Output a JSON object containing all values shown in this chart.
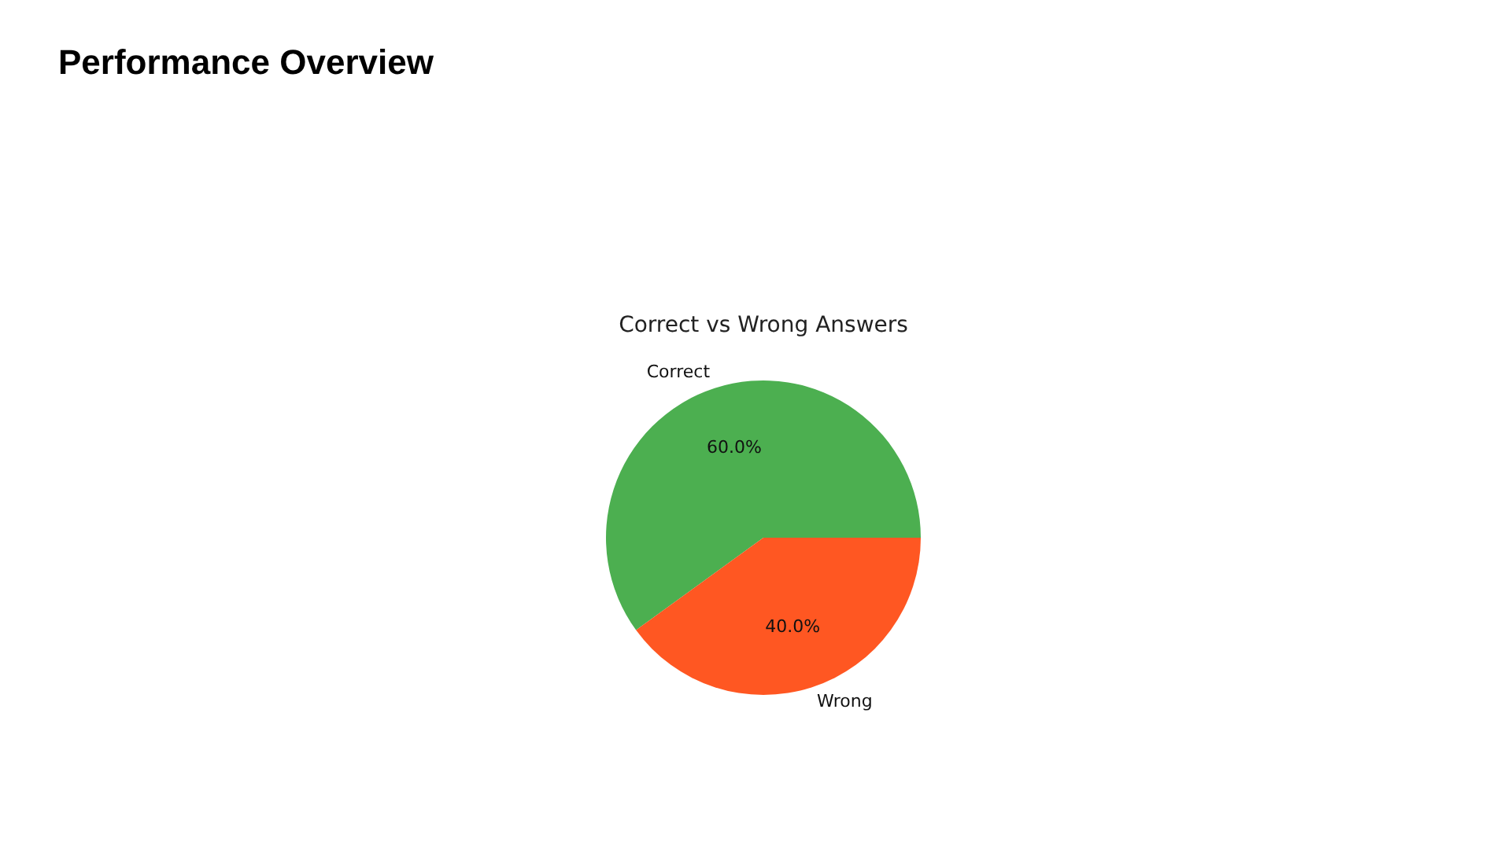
{
  "chart_data": {
    "type": "pie",
    "title": "Performance Overview",
    "subtitle": "Correct vs Wrong Answers",
    "categories": [
      "Correct",
      "Wrong"
    ],
    "values": [
      60,
      40
    ],
    "colors": [
      "#4caf50",
      "#ff5722"
    ],
    "value_labels": [
      "60.0%",
      "40.0%"
    ]
  }
}
